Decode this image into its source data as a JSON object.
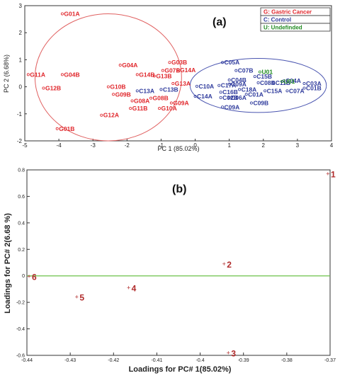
{
  "chart_data": [
    {
      "panel": "(a)",
      "type": "scatter",
      "xlabel": "PC 1 (85.02%)",
      "ylabel": "PC 2 (6.68%)",
      "xlim": [
        -5,
        4
      ],
      "ylim": [
        -2,
        3
      ],
      "xticks": [
        "-5",
        "-4",
        "-3",
        "-2",
        "-1",
        "0",
        "1",
        "2",
        "3",
        "4"
      ],
      "yticks": [
        "-2",
        "-1",
        "0",
        "1",
        "2",
        "3"
      ],
      "legend_position": "top-right",
      "legend": [
        {
          "label": "G: Gastric Cancer",
          "color": "#e0262b"
        },
        {
          "label": "C: Control",
          "color": "#2e3a9c"
        },
        {
          "label": "U: Undefinded",
          "color": "#1f8a1f"
        }
      ],
      "series": [
        {
          "group": "G",
          "color": "#e0262b",
          "points": [
            {
              "label": "G01A",
              "x": -3.9,
              "y": 2.7
            },
            {
              "label": "G11A",
              "x": -4.9,
              "y": 0.45
            },
            {
              "label": "G04B",
              "x": -3.9,
              "y": 0.45
            },
            {
              "label": "G12B",
              "x": -4.45,
              "y": -0.05
            },
            {
              "label": "G01B",
              "x": -4.05,
              "y": -1.55
            },
            {
              "label": "G04A",
              "x": -2.2,
              "y": 0.8
            },
            {
              "label": "G03B",
              "x": -0.75,
              "y": 0.9
            },
            {
              "label": "G14A",
              "x": -0.5,
              "y": 0.62
            },
            {
              "label": "G07B",
              "x": -0.95,
              "y": 0.6
            },
            {
              "label": "G14B",
              "x": -1.7,
              "y": 0.45
            },
            {
              "label": "G13B",
              "x": -1.2,
              "y": 0.4
            },
            {
              "label": "G10B",
              "x": -2.55,
              "y": 0.0
            },
            {
              "label": "G13A",
              "x": -0.65,
              "y": 0.12
            },
            {
              "label": "G09B",
              "x": -2.4,
              "y": -0.28
            },
            {
              "label": "G08A",
              "x": -1.85,
              "y": -0.52
            },
            {
              "label": "G08B",
              "x": -1.3,
              "y": -0.42
            },
            {
              "label": "G09A",
              "x": -0.7,
              "y": -0.6
            },
            {
              "label": "G12A",
              "x": -2.75,
              "y": -1.05
            },
            {
              "label": "G11B",
              "x": -1.9,
              "y": -0.8
            },
            {
              "label": "G10A",
              "x": -1.05,
              "y": -0.8
            }
          ]
        },
        {
          "group": "C",
          "color": "#2e3a9c",
          "points": [
            {
              "label": "C13A",
              "x": -1.7,
              "y": -0.15
            },
            {
              "label": "C13B",
              "x": -1.0,
              "y": -0.1
            },
            {
              "label": "C05A",
              "x": 0.8,
              "y": 0.9
            },
            {
              "label": "C07B",
              "x": 1.2,
              "y": 0.6
            },
            {
              "label": "C15B",
              "x": 1.75,
              "y": 0.38
            },
            {
              "label": "C04B",
              "x": 1.0,
              "y": 0.25
            },
            {
              "label": "C10A",
              "x": 0.05,
              "y": 0.02
            },
            {
              "label": "C17A",
              "x": 0.7,
              "y": 0.05
            },
            {
              "label": "C09A",
              "x": 1.0,
              "y": 0.1
            },
            {
              "label": "C14A",
              "x": 0.0,
              "y": -0.35
            },
            {
              "label": "C16B",
              "x": 0.75,
              "y": -0.2
            },
            {
              "label": "C02B",
              "x": 0.75,
              "y": -0.4
            },
            {
              "label": "C06A",
              "x": 1.0,
              "y": -0.4
            },
            {
              "label": "C18A",
              "x": 1.3,
              "y": -0.1
            },
            {
              "label": "C01A",
              "x": 1.5,
              "y": -0.28
            },
            {
              "label": "C09B",
              "x": 1.65,
              "y": -0.6
            },
            {
              "label": "C09A",
              "x": 0.8,
              "y": -0.75
            },
            {
              "label": "C08B",
              "x": 1.85,
              "y": 0.15
            },
            {
              "label": "C11B",
              "x": 2.3,
              "y": 0.15
            },
            {
              "label": "C03A",
              "x": 3.2,
              "y": 0.12
            },
            {
              "label": "C07A",
              "x": 2.7,
              "y": -0.15
            },
            {
              "label": "C15A",
              "x": 2.05,
              "y": -0.15
            },
            {
              "label": "C01B",
              "x": 3.2,
              "y": -0.05
            },
            {
              "label": "C04A",
              "x": 2.6,
              "y": 0.22
            }
          ]
        },
        {
          "group": "U",
          "color": "#1f8a1f",
          "points": [
            {
              "label": "U01",
              "x": 1.9,
              "y": 0.55
            },
            {
              "label": "U01",
              "x": 2.55,
              "y": 0.2
            }
          ]
        }
      ],
      "annotations": [
        "ellipse around G group",
        "ellipse around C group"
      ]
    },
    {
      "panel": "(b)",
      "type": "scatter",
      "xlabel": "Loadings for PC# 1(85.02%)",
      "ylabel": "Loadings for PC# 2(6.68 %)",
      "xlim": [
        -0.44,
        -0.37
      ],
      "ylim": [
        -0.6,
        0.8
      ],
      "xticks": [
        "-0.44",
        "-0.43",
        "-0.42",
        "-0.41",
        "-0.4",
        "-0.39",
        "-0.38",
        "-0.37"
      ],
      "yticks": [
        "-0.6",
        "-0.4",
        "-0.2",
        "0",
        "0.2",
        "0.4",
        "0.6",
        "0.8"
      ],
      "reference_line_y": 0,
      "reference_line_color": "#6cc24a",
      "points": [
        {
          "label": "1",
          "x": -0.3705,
          "y": 0.77
        },
        {
          "label": "2",
          "x": -0.3945,
          "y": 0.09
        },
        {
          "label": "3",
          "x": -0.3935,
          "y": -0.58
        },
        {
          "label": "4",
          "x": -0.4165,
          "y": -0.09
        },
        {
          "label": "5",
          "x": -0.4285,
          "y": -0.16
        },
        {
          "label": "6",
          "x": -0.4395,
          "y": -0.005
        }
      ],
      "marker_color": "#b02a2a"
    }
  ]
}
